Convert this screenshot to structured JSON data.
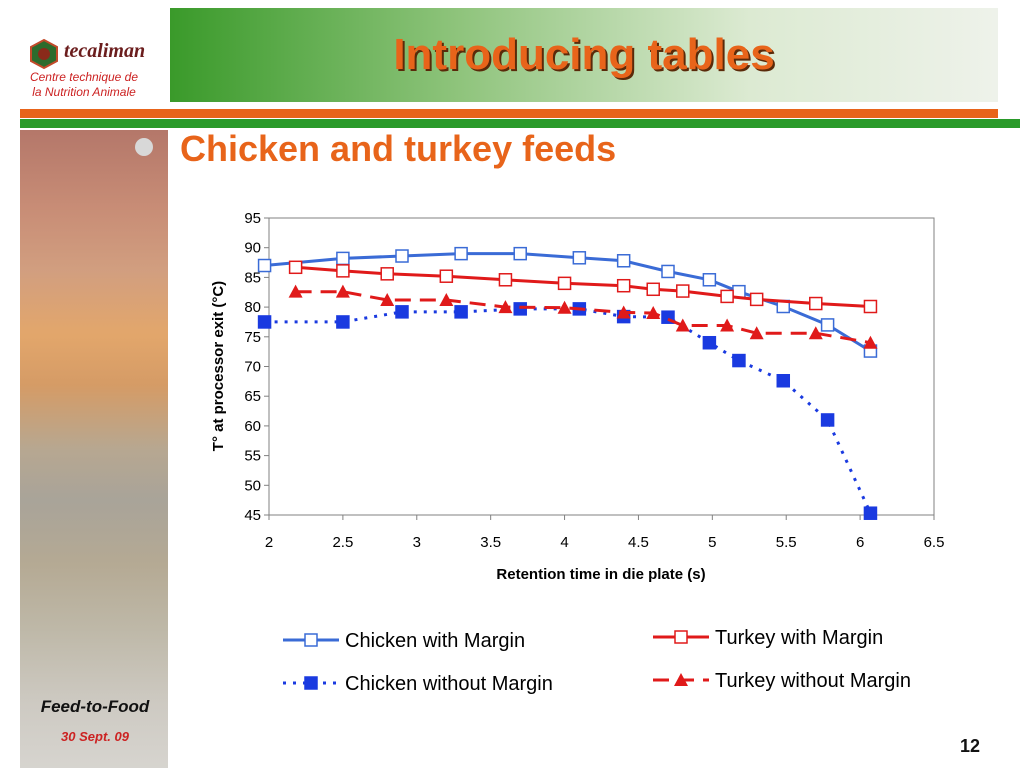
{
  "header": {
    "title": "Introducing tables",
    "subtitle": "Chicken and turkey feeds"
  },
  "logo": {
    "brand": "tecaliman",
    "line1": "Centre technique de",
    "line2": "la Nutrition Animale"
  },
  "footer": {
    "event": "Feed-to-Food",
    "date": "30 Sept. 09",
    "page": "12"
  },
  "colors": {
    "accent_orange": "#e8641a",
    "accent_green": "#2a9a2a",
    "chicken_blue": "#3a6bd6",
    "turkey_red": "#e01a1a"
  },
  "chart_data": {
    "type": "line",
    "xlabel": "Retention time in die plate (s)",
    "ylabel": "T° at processor exit (°C)",
    "xlim": [
      2,
      6.5
    ],
    "ylim": [
      45,
      95
    ],
    "x_ticks": [
      "2",
      "2.5",
      "3",
      "3.5",
      "4",
      "4.5",
      "5",
      "5.5",
      "6",
      "6.5"
    ],
    "y_ticks": [
      "95",
      "90",
      "85",
      "80",
      "75",
      "70",
      "65",
      "60",
      "55",
      "50",
      "45"
    ],
    "grid": false,
    "legend_position": "bottom",
    "series": [
      {
        "name": "Chicken with Margin",
        "color": "#3a6bd6",
        "dash": "solid",
        "marker": "open-square",
        "points": [
          [
            1.97,
            87
          ],
          [
            2.5,
            88.2
          ],
          [
            2.9,
            88.6
          ],
          [
            3.3,
            89
          ],
          [
            3.7,
            89
          ],
          [
            4.1,
            88.3
          ],
          [
            4.4,
            87.8
          ],
          [
            4.7,
            86
          ],
          [
            4.98,
            84.6
          ],
          [
            5.18,
            82.6
          ],
          [
            5.48,
            80.1
          ],
          [
            5.78,
            77
          ],
          [
            6.07,
            72.6
          ]
        ]
      },
      {
        "name": "Chicken without Margin",
        "color": "#1a3ae0",
        "dash": "dotted",
        "marker": "filled-square",
        "points": [
          [
            1.97,
            77.5
          ],
          [
            2.5,
            77.5
          ],
          [
            2.9,
            79.2
          ],
          [
            3.3,
            79.2
          ],
          [
            3.7,
            79.7
          ],
          [
            4.1,
            79.7
          ],
          [
            4.4,
            78.4
          ],
          [
            4.7,
            78.3
          ],
          [
            4.98,
            74
          ],
          [
            5.18,
            71
          ],
          [
            5.48,
            67.6
          ],
          [
            5.78,
            61
          ],
          [
            6.07,
            45.3
          ]
        ]
      },
      {
        "name": "Turkey with Margin",
        "color": "#e01a1a",
        "dash": "solid",
        "marker": "open-square",
        "points": [
          [
            2.18,
            86.7
          ],
          [
            2.5,
            86.1
          ],
          [
            2.8,
            85.6
          ],
          [
            3.2,
            85.2
          ],
          [
            3.6,
            84.6
          ],
          [
            4.0,
            84
          ],
          [
            4.4,
            83.6
          ],
          [
            4.6,
            83
          ],
          [
            4.8,
            82.7
          ],
          [
            5.1,
            81.8
          ],
          [
            5.3,
            81.3
          ],
          [
            5.7,
            80.6
          ],
          [
            6.07,
            80.1
          ]
        ]
      },
      {
        "name": "Turkey without Margin",
        "color": "#e01a1a",
        "dash": "dashed",
        "marker": "filled-triangle",
        "points": [
          [
            2.18,
            82.6
          ],
          [
            2.5,
            82.6
          ],
          [
            2.8,
            81.2
          ],
          [
            3.2,
            81.2
          ],
          [
            3.6,
            80
          ],
          [
            4.0,
            79.9
          ],
          [
            4.4,
            79.1
          ],
          [
            4.6,
            79
          ],
          [
            4.8,
            76.9
          ],
          [
            5.1,
            76.9
          ],
          [
            5.3,
            75.6
          ],
          [
            5.7,
            75.6
          ],
          [
            6.07,
            74
          ]
        ]
      }
    ]
  }
}
